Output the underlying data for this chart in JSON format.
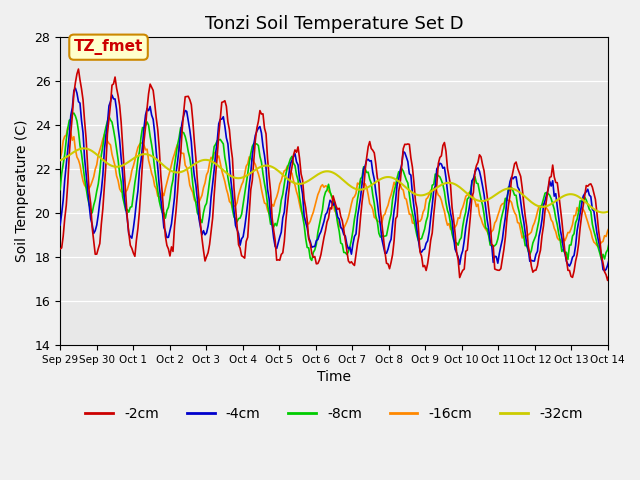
{
  "title": "Tonzi Soil Temperature Set D",
  "xlabel": "Time",
  "ylabel": "Soil Temperature (C)",
  "ylim": [
    14,
    28
  ],
  "yticks": [
    14,
    16,
    18,
    20,
    22,
    24,
    26,
    28
  ],
  "x_labels": [
    "Sep 29",
    "Sep 30",
    "Oct 1",
    "Oct 2",
    "Oct 3",
    "Oct 4",
    "Oct 5",
    "Oct 6",
    "Oct 7",
    "Oct 8",
    "Oct 9",
    "Oct 10",
    "Oct 11",
    "Oct 12",
    "Oct 13",
    "Oct 14"
  ],
  "colors": {
    "-2cm": "#cc0000",
    "-4cm": "#0000cc",
    "-8cm": "#00cc00",
    "-16cm": "#ff8800",
    "-32cm": "#cccc00"
  },
  "legend_label_color": "#cc0000",
  "annotation_text": "TZ_fmet",
  "annotation_bg": "#ffffcc",
  "annotation_border": "#cc8800",
  "fig_bg": "#f0f0f0",
  "plot_bg": "#e8e8e8",
  "grid_color": "#ffffff",
  "title_fontsize": 13,
  "axis_fontsize": 10,
  "tick_fontsize": 7.5,
  "legend_fontsize": 10
}
